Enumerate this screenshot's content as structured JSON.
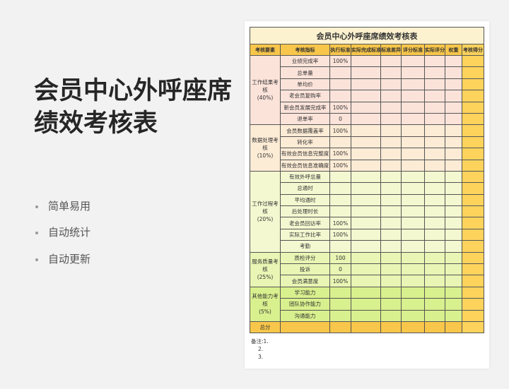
{
  "left": {
    "title": "会员中心外呼座席绩效考核表",
    "bullets": [
      "简单易用",
      "自动统计",
      "自动更新"
    ]
  },
  "sheet": {
    "title": "会员中心外呼座席绩效考核表",
    "headers": [
      "考核要素",
      "考核指标",
      "执行标准",
      "实际完成标准",
      "标准差异",
      "评分标准",
      "实际评分",
      "权重",
      "考核得分"
    ],
    "groups": [
      {
        "name": "工作结果考核",
        "weight": "(40%)",
        "rows": [
          [
            "业绩完成率",
            "100%"
          ],
          [
            "总单量",
            ""
          ],
          [
            "单均价",
            ""
          ],
          [
            "老会员复购率",
            ""
          ],
          [
            "新会员发展完成率",
            "100%"
          ],
          [
            "退单率",
            "0"
          ]
        ]
      },
      {
        "name": "数据处理考核",
        "weight": "(10%)",
        "rows": [
          [
            "会员数据覆盖率",
            "100%"
          ],
          [
            "转化率",
            ""
          ],
          [
            "有效会员信息完整度",
            "100%"
          ],
          [
            "有效会员信息准确度",
            "100%"
          ]
        ]
      },
      {
        "name": "工作过程考核",
        "weight": "(20%)",
        "rows": [
          [
            "有效外呼总量",
            ""
          ],
          [
            "总通时",
            ""
          ],
          [
            "平均通时",
            ""
          ],
          [
            "后处理时长",
            ""
          ],
          [
            "老会员回访率",
            "100%"
          ],
          [
            "实际工作比率",
            "100%"
          ],
          [
            "考勤",
            ""
          ]
        ]
      },
      {
        "name": "服务质量考核",
        "weight": "(25%)",
        "rows": [
          [
            "质检评分",
            "100"
          ],
          [
            "投诉",
            "0"
          ],
          [
            "会员满意度",
            "100%"
          ]
        ]
      },
      {
        "name": "其他能力考核",
        "weight": "(5%)",
        "rows": [
          [
            "学习能力",
            ""
          ],
          [
            "团队协作能力",
            ""
          ],
          [
            "沟通能力",
            ""
          ]
        ]
      }
    ],
    "total_label": "总分",
    "notes": [
      "备注:1.",
      "2.",
      "3."
    ]
  },
  "colors": {
    "header": "#f8c64a",
    "score_col": "#fdd35c",
    "title_bg": "#fdf2cf"
  }
}
